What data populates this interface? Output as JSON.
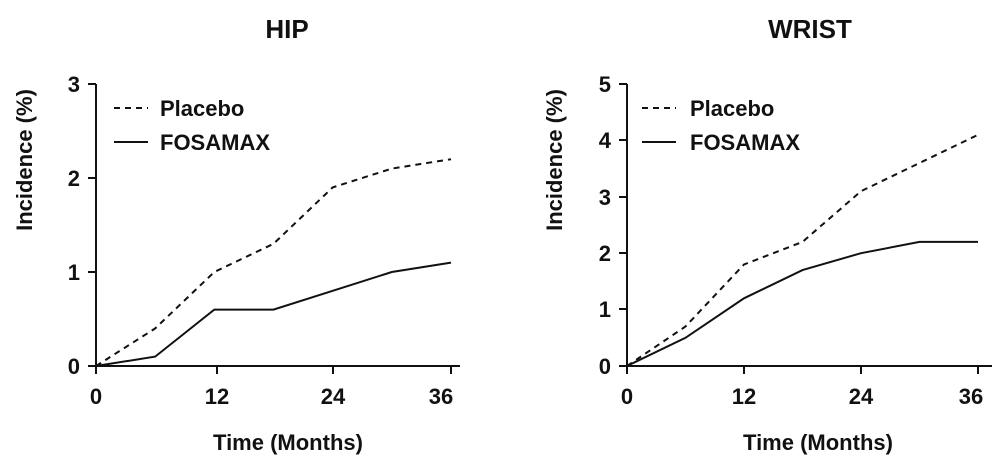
{
  "chart_data": [
    {
      "type": "line",
      "title": "HIP",
      "xlabel": "Time (Months)",
      "ylabel": "Incidence (%)",
      "xlim": [
        0,
        36
      ],
      "ylim": [
        0,
        3
      ],
      "x_ticks": [
        "0",
        "12",
        "24",
        "36"
      ],
      "y_ticks": [
        "0",
        "1",
        "2",
        "3"
      ],
      "grid": false,
      "legend_position": "top-left",
      "series": [
        {
          "name": "Placebo",
          "style": "dashed",
          "x": [
            0,
            6,
            12,
            18,
            24,
            30,
            36
          ],
          "y": [
            0,
            0.4,
            1.0,
            1.3,
            1.9,
            2.1,
            2.2
          ]
        },
        {
          "name": "FOSAMAX",
          "style": "solid",
          "x": [
            0,
            6,
            12,
            18,
            24,
            30,
            36
          ],
          "y": [
            0,
            0.1,
            0.6,
            0.6,
            0.8,
            1.0,
            1.1
          ]
        }
      ]
    },
    {
      "type": "line",
      "title": "WRIST",
      "xlabel": "Time (Months)",
      "ylabel": "Incidence (%)",
      "xlim": [
        0,
        36
      ],
      "ylim": [
        0,
        5
      ],
      "x_ticks": [
        "0",
        "12",
        "24",
        "36"
      ],
      "y_ticks": [
        "0",
        "1",
        "2",
        "3",
        "4",
        "5"
      ],
      "grid": false,
      "legend_position": "top-left",
      "series": [
        {
          "name": "Placebo",
          "style": "dashed",
          "x": [
            0,
            6,
            12,
            18,
            24,
            30,
            36
          ],
          "y": [
            0,
            0.7,
            1.8,
            2.2,
            3.1,
            3.6,
            4.1
          ]
        },
        {
          "name": "FOSAMAX",
          "style": "solid",
          "x": [
            0,
            6,
            12,
            18,
            24,
            30,
            36
          ],
          "y": [
            0,
            0.5,
            1.2,
            1.7,
            2.0,
            2.2,
            2.2
          ]
        }
      ]
    }
  ]
}
